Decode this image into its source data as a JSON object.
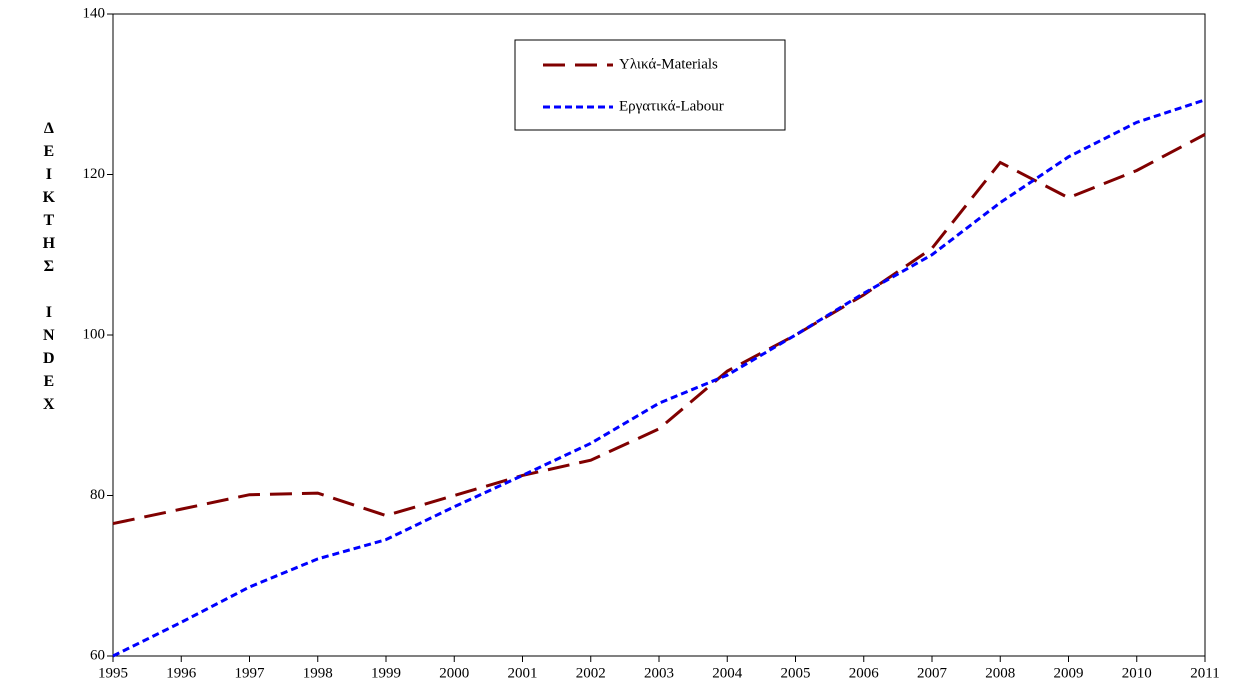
{
  "chart_data": {
    "type": "line",
    "y_label": "ΔΕΙΚΤΗΣ INDEX",
    "x": [
      1995,
      1996,
      1997,
      1998,
      1999,
      2000,
      2001,
      2002,
      2003,
      2004,
      2005,
      2006,
      2007,
      2008,
      2009,
      2010,
      2011
    ],
    "xlim": [
      1995,
      2011
    ],
    "xticks": [
      1995,
      1996,
      1997,
      1998,
      1999,
      2000,
      2001,
      2002,
      2003,
      2004,
      2005,
      2006,
      2007,
      2008,
      2009,
      2010,
      2011
    ],
    "ylim": [
      60,
      140
    ],
    "yticks": [
      60,
      80,
      100,
      120,
      140
    ],
    "grid": false,
    "legend": "top-center",
    "series": [
      {
        "name": "Υλικά-Materials",
        "color": "#800000",
        "dash": "long",
        "values": [
          76.5,
          78.3,
          80.1,
          80.3,
          77.5,
          80.0,
          82.5,
          84.4,
          88.3,
          95.5,
          100,
          105,
          110.8,
          121.5,
          117.1,
          120.5,
          125
        ]
      },
      {
        "name": "Εργατικά-Labour",
        "color": "#0000ff",
        "dash": "short",
        "values": [
          60,
          64.2,
          68.6,
          72.1,
          74.5,
          78.6,
          82.5,
          86.5,
          91.5,
          95,
          100,
          105.2,
          110,
          116.5,
          122.2,
          126.5,
          129.3
        ]
      }
    ]
  }
}
